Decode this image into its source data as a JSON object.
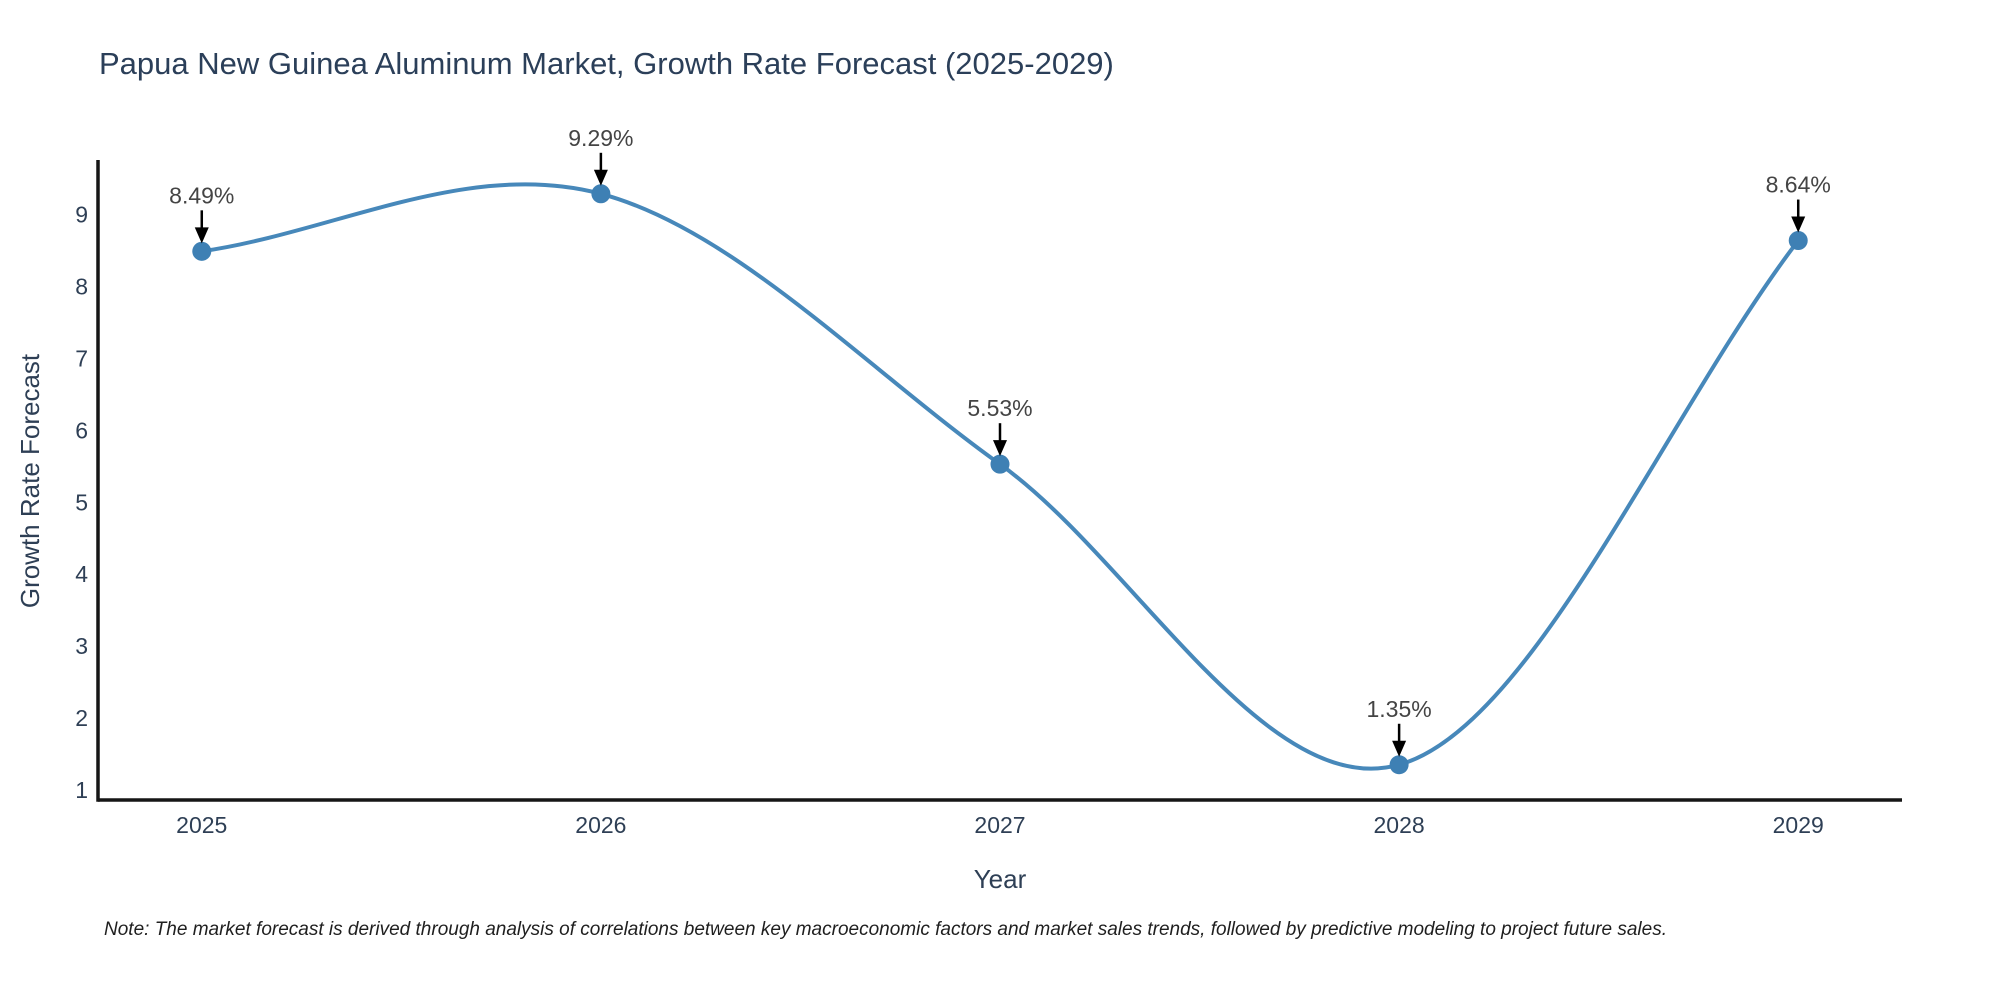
{
  "chart": {
    "title": "Papua New Guinea Aluminum Market, Growth Rate Forecast (2025-2029)",
    "xlabel": "Year",
    "ylabel": "Growth Rate Forecast",
    "note": "Note: The market forecast is derived through analysis of correlations between key macroeconomic factors and market sales trends, followed by predictive modeling to project future sales."
  },
  "chart_data": {
    "type": "line",
    "line_shape": "spline",
    "title": "Papua New Guinea Aluminum Market, Growth Rate Forecast (2025-2029)",
    "xlabel": "Year",
    "ylabel": "Growth Rate Forecast",
    "x": [
      2025,
      2026,
      2027,
      2028,
      2029
    ],
    "series": [
      {
        "name": "Growth Rate Forecast",
        "values": [
          8.49,
          9.29,
          5.53,
          1.35,
          8.64
        ],
        "labels": [
          "8.49%",
          "9.29%",
          "5.53%",
          "1.35%",
          "8.64%"
        ]
      }
    ],
    "xticks": [
      "2025",
      "2026",
      "2027",
      "2028",
      "2029"
    ],
    "yticks": [
      1,
      2,
      3,
      4,
      5,
      6,
      7,
      8,
      9
    ],
    "xlim": [
      2024.74,
      2029.26
    ],
    "ylim": [
      0.86,
      9.76
    ],
    "grid": false,
    "legend": "none",
    "annotation_style": "value-label-with-down-arrow",
    "colors": {
      "line": "#4788ba",
      "marker": "#3e80b4",
      "axis": "#161616",
      "arrow": "#000000",
      "title_text": "#2b3f59",
      "tick_text": "#2e3f55",
      "annotation_text": "#444444",
      "note_text": "#1f1f1f",
      "background": "#ffffff"
    }
  }
}
